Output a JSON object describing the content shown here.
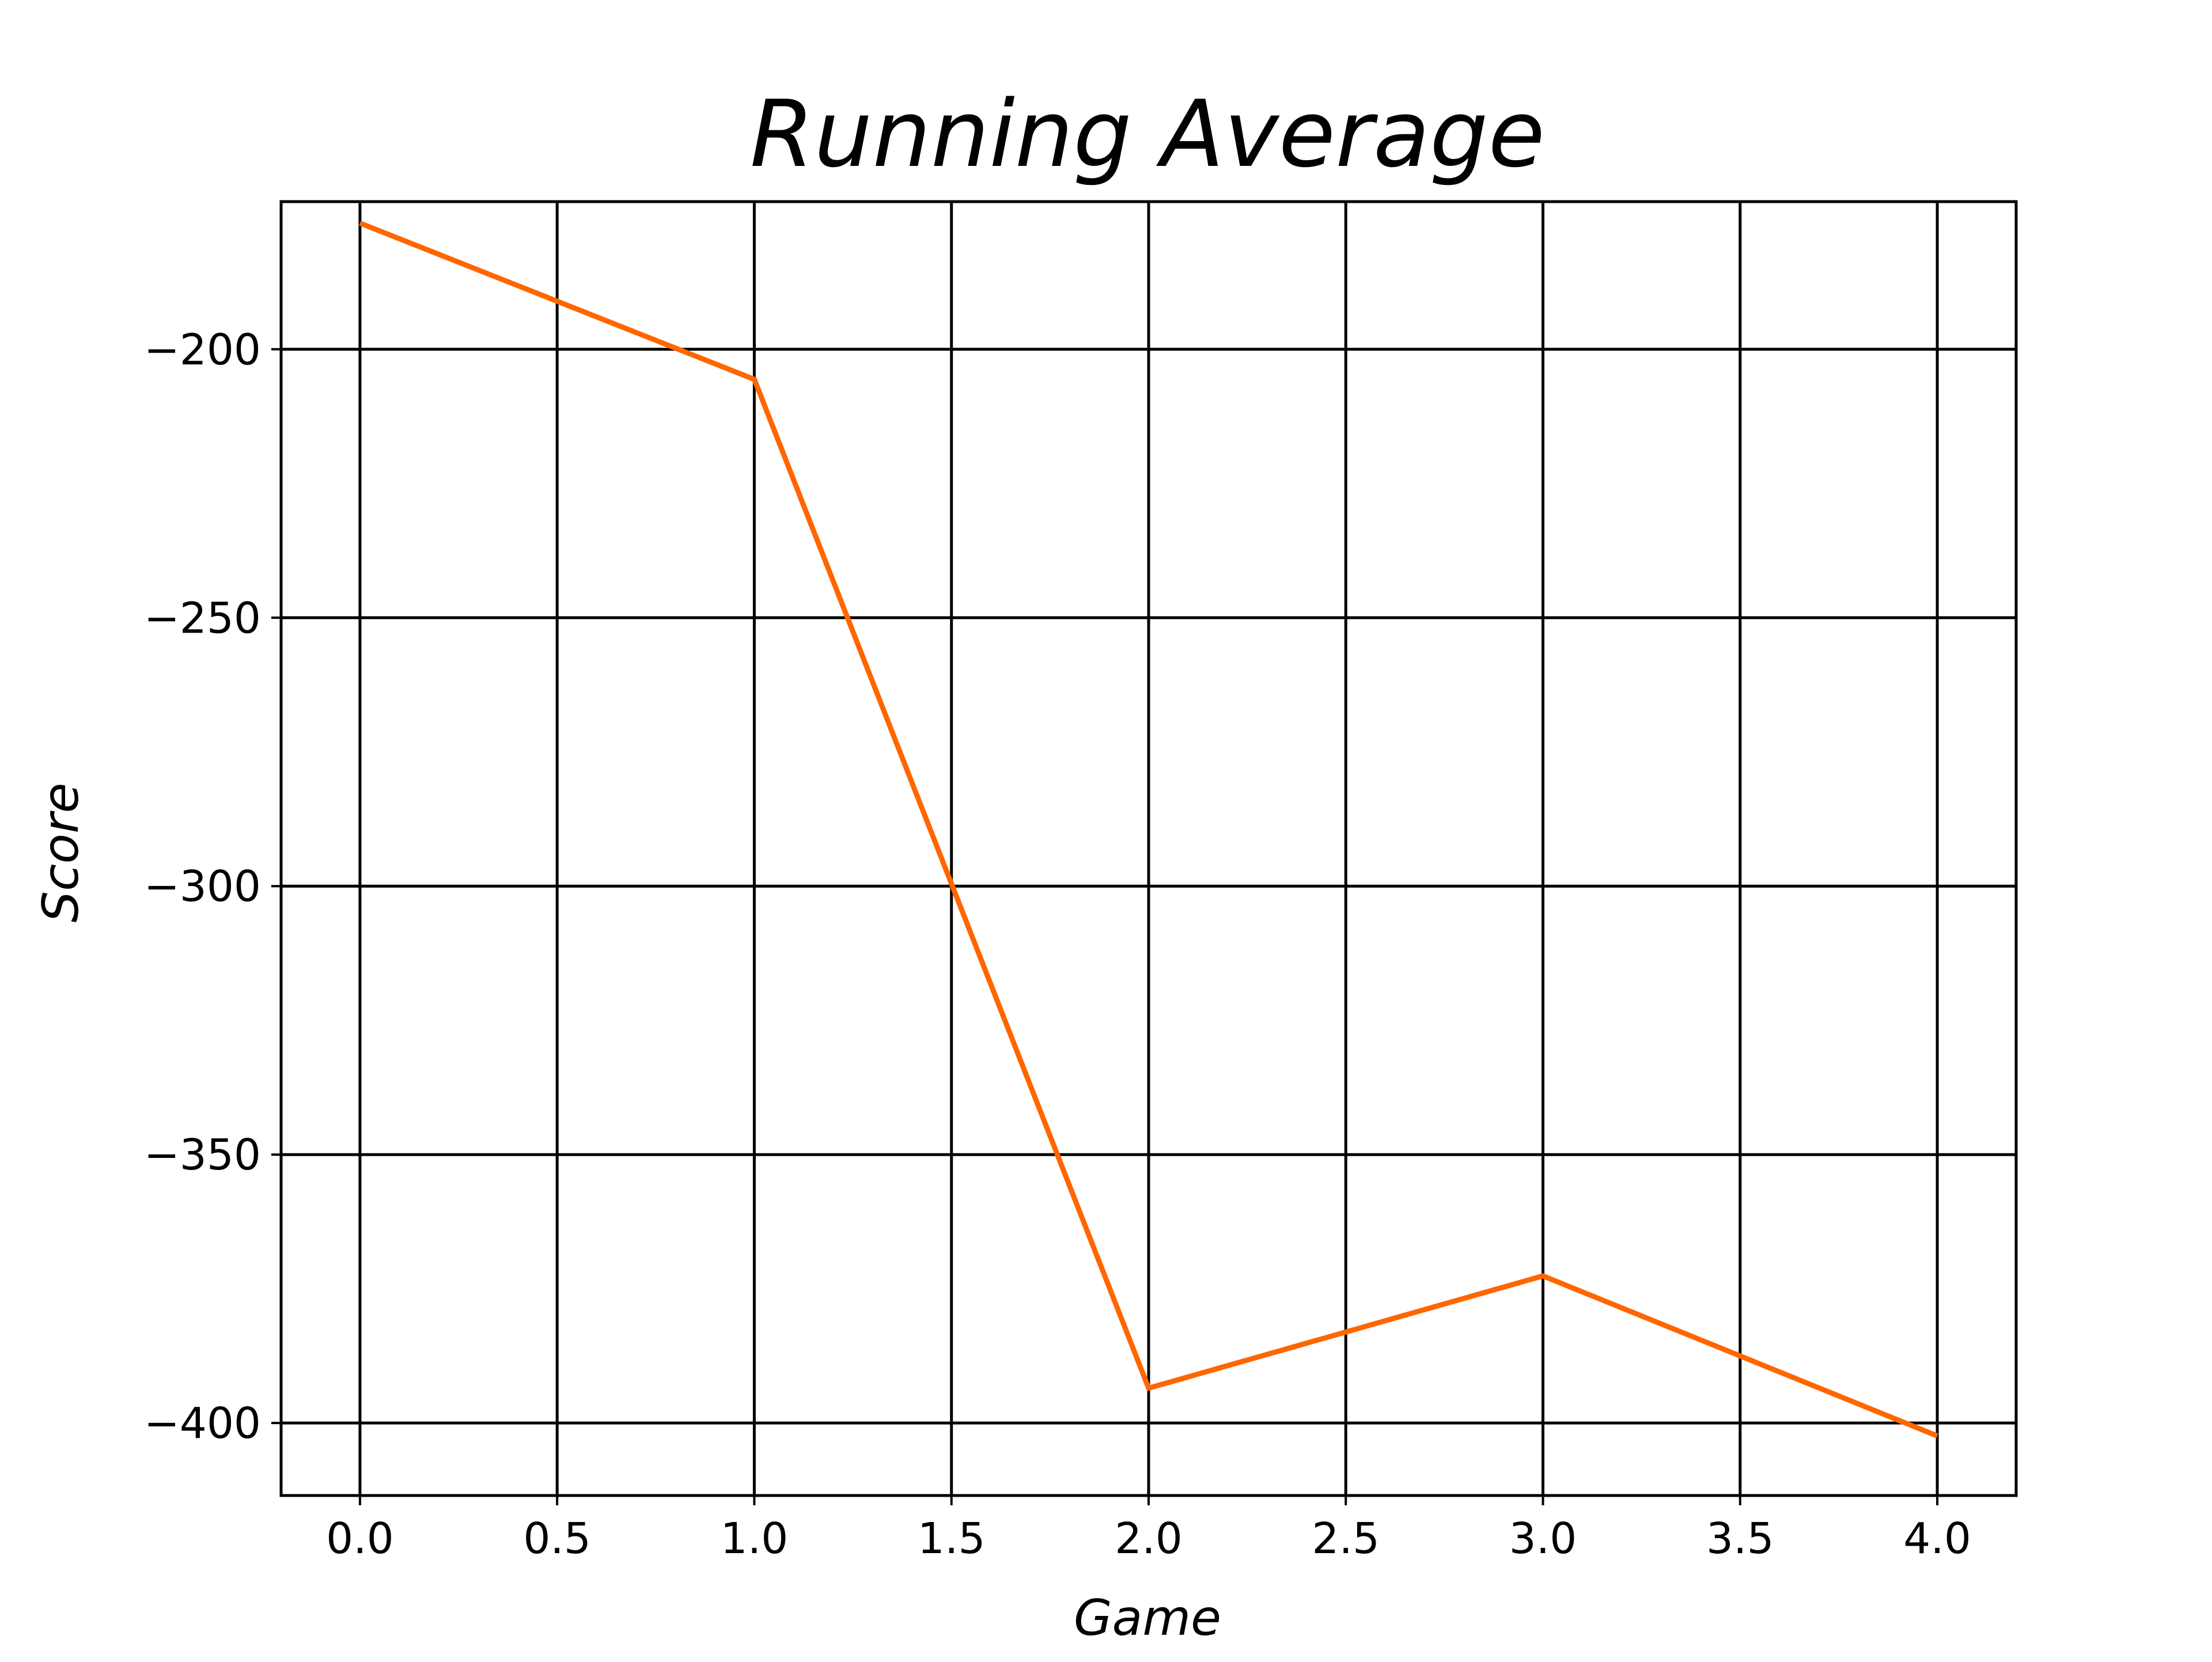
{
  "chart_data": {
    "type": "line",
    "title": "Running Average",
    "xlabel": "Game",
    "ylabel": "Score",
    "xlim": [
      -0.2,
      4.2
    ],
    "ylim": [
      -413.5,
      -172.5
    ],
    "xticks": [
      0.0,
      0.5,
      1.0,
      1.5,
      2.0,
      2.5,
      3.0,
      3.5,
      4.0
    ],
    "xtick_labels": [
      "0.0",
      "0.5",
      "1.0",
      "1.5",
      "2.0",
      "2.5",
      "3.0",
      "3.5",
      "4.0"
    ],
    "yticks": [
      -200,
      -250,
      -300,
      -350,
      -400
    ],
    "ytick_labels": [
      "−200",
      "−250",
      "−300",
      "−350",
      "−400"
    ],
    "grid": true,
    "series": [
      {
        "color": "#ff6600",
        "x": [
          0,
          1,
          2,
          3,
          4
        ],
        "y": [
          -176.5,
          -205.6,
          -393.5,
          -372.6,
          -402.4
        ]
      }
    ]
  }
}
